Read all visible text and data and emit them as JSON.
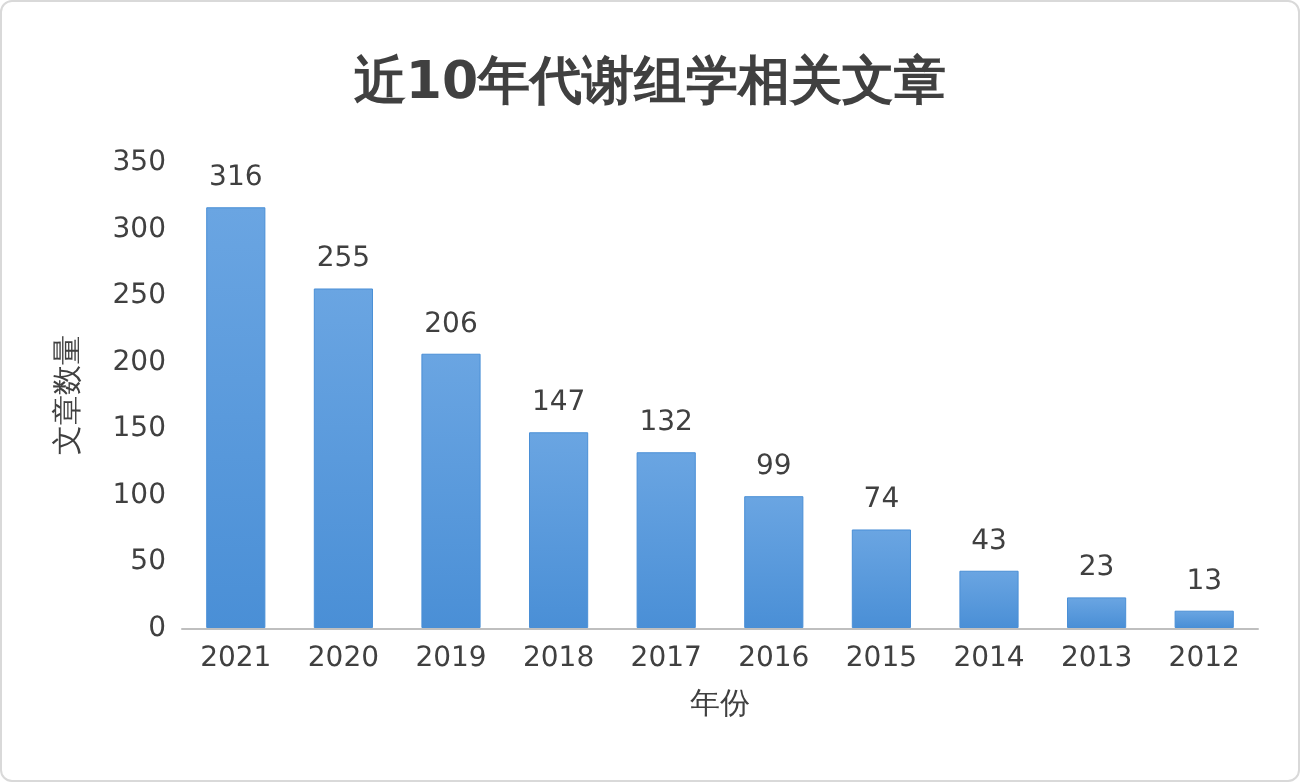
{
  "chart_data": {
    "type": "bar",
    "title": "近10年代谢组学相关文章",
    "xlabel": "年份",
    "ylabel": "文章数量",
    "categories": [
      "2021",
      "2020",
      "2019",
      "2018",
      "2017",
      "2016",
      "2015",
      "2014",
      "2013",
      "2012"
    ],
    "values": [
      316,
      255,
      206,
      147,
      132,
      99,
      74,
      43,
      23,
      13
    ],
    "color": "#4a8fd6",
    "ylim": [
      0,
      350
    ],
    "yticks": [
      0,
      50,
      100,
      150,
      200,
      250,
      300,
      350
    ],
    "grid": false,
    "data_labels": true
  }
}
